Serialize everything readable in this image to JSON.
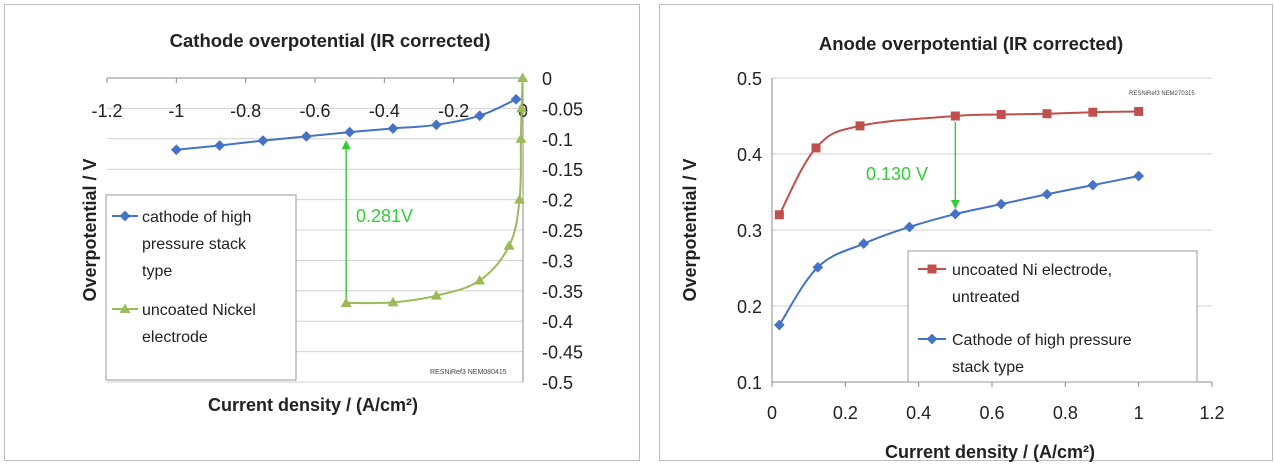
{
  "chart_data": [
    {
      "type": "line",
      "title": "Cathode overpotential (IR corrected)",
      "xlabel": "Current density / (A/cm²)",
      "ylabel": "Overpotential / V",
      "xlim": [
        -1.2,
        0
      ],
      "ylim": [
        -0.5,
        0
      ],
      "x_ticks": [
        "-1.2",
        "-1",
        "-0.8",
        "-0.6",
        "-0.4",
        "-0.2",
        "0"
      ],
      "y_ticks": [
        "0",
        "-0.05",
        "-0.1",
        "-0.15",
        "-0.2",
        "-0.25",
        "-0.3",
        "-0.35",
        "-0.4",
        "-0.45",
        "-0.5"
      ],
      "grid": true,
      "legend_position": "lower-left",
      "series": [
        {
          "name": "cathode of high pressure stack type",
          "marker": "diamond",
          "color": "#4472C4",
          "x": [
            -1.0,
            -0.875,
            -0.75,
            -0.625,
            -0.5,
            -0.375,
            -0.25,
            -0.125,
            -0.02
          ],
          "y": [
            -0.118,
            -0.111,
            -0.103,
            -0.096,
            -0.089,
            -0.083,
            -0.077,
            -0.062,
            -0.035
          ]
        },
        {
          "name": "uncoated Nickel electrode",
          "marker": "triangle",
          "color": "#9BBB59",
          "x": [
            -0.51,
            -0.375,
            -0.25,
            -0.125,
            -0.04,
            -0.01,
            -0.006,
            -0.004,
            -0.001
          ],
          "y": [
            -0.37,
            -0.369,
            -0.358,
            -0.333,
            -0.276,
            -0.2,
            -0.1,
            -0.05,
            0.0
          ]
        }
      ],
      "annotations": [
        {
          "text": "0.281V",
          "color": "#33CC33"
        },
        {
          "text": "RESNiRef3 NEM080415"
        }
      ]
    },
    {
      "type": "line",
      "title": "Anode overpotential (IR corrected)",
      "xlabel": "Current density / (A/cm²)",
      "ylabel": "Overpotential / V",
      "xlim": [
        0,
        1.2
      ],
      "ylim": [
        0.1,
        0.5
      ],
      "x_ticks": [
        "0",
        "0.2",
        "0.4",
        "0.6",
        "0.8",
        "1",
        "1.2"
      ],
      "y_ticks": [
        "0.1",
        "0.2",
        "0.3",
        "0.4",
        "0.5"
      ],
      "grid": true,
      "legend_position": "lower-right",
      "series": [
        {
          "name": "uncoated Ni electrode, untreated",
          "marker": "square",
          "color": "#C0504D",
          "x": [
            0.02,
            0.12,
            0.24,
            0.5,
            0.625,
            0.75,
            0.875,
            1.0
          ],
          "y": [
            0.32,
            0.408,
            0.437,
            0.45,
            0.452,
            0.453,
            0.455,
            0.456
          ]
        },
        {
          "name": "Cathode of high pressure stack type",
          "marker": "diamond",
          "color": "#4472C4",
          "x": [
            0.02,
            0.125,
            0.25,
            0.375,
            0.5,
            0.625,
            0.75,
            0.875,
            1.0
          ],
          "y": [
            0.175,
            0.251,
            0.282,
            0.304,
            0.321,
            0.334,
            0.347,
            0.359,
            0.371
          ]
        }
      ],
      "annotations": [
        {
          "text": "0.130 V",
          "color": "#33CC33"
        },
        {
          "text": "RESNiRef3 NEM270315"
        }
      ]
    }
  ]
}
